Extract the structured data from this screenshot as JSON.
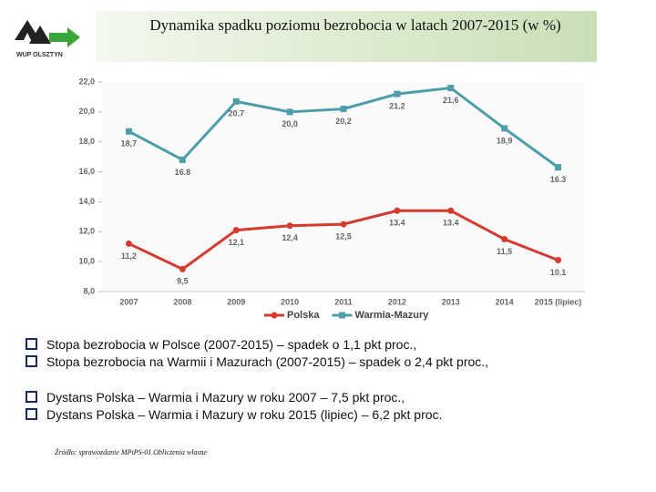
{
  "logo_text": "WUP OLSZTYN",
  "chart_data": {
    "type": "line",
    "title": "Dynamika spadku poziomu bezrobocia w latach 2007-2015 (w %)",
    "categories": [
      "2007",
      "2008",
      "2009",
      "2010",
      "2011",
      "2012",
      "2013",
      "2014",
      "2015 (lipiec)"
    ],
    "series": [
      {
        "name": "Polska",
        "color": "#d63a2f",
        "marker": "circle",
        "values": [
          11.2,
          9.5,
          12.1,
          12.4,
          12.5,
          13.4,
          13.4,
          11.5,
          10.1
        ],
        "value_labels": [
          "11,2",
          "9,5",
          "12,1",
          "12,4",
          "12,5",
          "13.4",
          "13.4",
          "11,5",
          "10.1"
        ]
      },
      {
        "name": "Warmia-Mazury",
        "color": "#4d9eaa",
        "marker": "square",
        "values": [
          18.7,
          16.8,
          20.7,
          20.0,
          20.2,
          21.2,
          21.6,
          18.9,
          16.3
        ],
        "value_labels": [
          "18,7",
          "16.8",
          "20.7",
          "20,0",
          "20,2",
          "21.2",
          "21,6",
          "18,9",
          "16.3"
        ]
      }
    ],
    "ylim": [
      8,
      22
    ],
    "yticks": [
      {
        "value": 8,
        "label": "8,0"
      },
      {
        "value": 10,
        "label": "10,0"
      },
      {
        "value": 12,
        "label": "12,0"
      },
      {
        "value": 14,
        "label": "14,0"
      },
      {
        "value": 16,
        "label": "16,0"
      },
      {
        "value": 18,
        "label": "18,0"
      },
      {
        "value": 20,
        "label": "20,0"
      },
      {
        "value": 22,
        "label": "22,0"
      }
    ],
    "legend": "bottom"
  },
  "bullets": [
    "Stopa bezrobocia w Polsce (2007-2015) – spadek o 1,1 pkt proc.,",
    "Stopa bezrobocia na Warmii i Mazurach (2007-2015) – spadek o 2,4 pkt proc.,",
    "Dystans Polska – Warmia i Mazury w roku 2007 – 7,5 pkt proc.,",
    "Dystans Polska – Warmia i Mazury w roku 2015 (lipiec) – 6,2 pkt proc."
  ],
  "source": "Źródło: sprawozdanie MPiPS-01.Obliczenia własne"
}
